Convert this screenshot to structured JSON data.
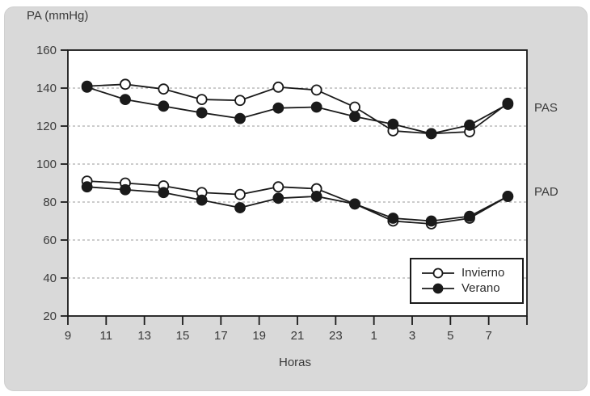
{
  "figure": {
    "background_color": "#d9d9d9",
    "plot_background_color": "#ffffff",
    "line_color": "#1a1a1a",
    "grid_color": "#999999",
    "text_color": "#3a3a3a"
  },
  "labels": {
    "title": "PA (mmHg)",
    "x_axis_title": "Horas",
    "band_upper": "PAS",
    "band_lower": "PAD"
  },
  "legend": {
    "entries": [
      {
        "label": "Invierno",
        "marker": "open-circle"
      },
      {
        "label": "Verano",
        "marker": "filled-circle"
      }
    ]
  },
  "chart_data": {
    "type": "line",
    "title": "PA (mmHg)",
    "xlabel": "Horas",
    "ylabel": "PA (mmHg)",
    "x_hours": [
      10,
      12,
      14,
      16,
      18,
      20,
      22,
      24,
      2,
      4,
      6,
      8
    ],
    "x_ticklabels": [
      "9",
      "11",
      "13",
      "15",
      "17",
      "19",
      "21",
      "23",
      "1",
      "3",
      "5",
      "7"
    ],
    "x_domain_hours": 24,
    "ylim": [
      20,
      160
    ],
    "ytick_step": 20,
    "y_ticklabels": [
      "160",
      "140",
      "120",
      "100",
      "80",
      "60",
      "40",
      "20"
    ],
    "grid": "horizontal dashed at 40,60,80,100,120,140",
    "legend_position": "bottom-right",
    "annotations": [
      {
        "text": "PAS",
        "meaning": "presion arterial sistolica band"
      },
      {
        "text": "PAD",
        "meaning": "presion arterial diastolica band"
      }
    ],
    "series": [
      {
        "name": "Invierno",
        "band": "PAS",
        "marker": "open",
        "values": [
          141,
          142,
          139.5,
          134,
          133.5,
          140.5,
          139,
          130,
          117.5,
          116,
          117,
          132
        ]
      },
      {
        "name": "Verano",
        "band": "PAS",
        "marker": "filled",
        "values": [
          140.5,
          134,
          130.5,
          127,
          124,
          129.5,
          130,
          125,
          121,
          116,
          120.5,
          131.5
        ]
      },
      {
        "name": "Invierno",
        "band": "PAD",
        "marker": "open",
        "values": [
          91,
          90,
          88.5,
          85,
          84,
          88,
          87,
          79,
          70,
          68.5,
          71.5,
          83
        ]
      },
      {
        "name": "Verano",
        "band": "PAD",
        "marker": "filled",
        "values": [
          88,
          86.5,
          85,
          81,
          77,
          82,
          83,
          79,
          71.5,
          70,
          72.5,
          83
        ]
      }
    ]
  }
}
